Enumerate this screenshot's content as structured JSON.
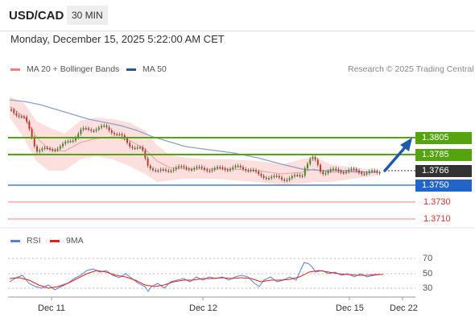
{
  "header": {
    "symbol": "USD/CAD",
    "interval": "30 MIN"
  },
  "datetime": "Monday, December 15, 2025 5:22:00 AM CET",
  "legend": {
    "bollinger_label": "MA 20 + Bollinger Bands",
    "bollinger_color": "#f08080",
    "ma50_label": "MA 50",
    "ma50_color": "#2a5599",
    "credit": "Research © 2025 Trading Central"
  },
  "levels": {
    "r2": {
      "value": "1.3805",
      "color": "#55a30e"
    },
    "r1": {
      "value": "1.3785",
      "color": "#55a30e"
    },
    "last": {
      "value": "1.3766",
      "color": "#333333"
    },
    "pivot": {
      "value": "1.3750",
      "color": "#2265c8"
    },
    "s1": {
      "value": "1.3730",
      "color": "#d0342c"
    },
    "s2": {
      "value": "1.3710",
      "color": "#d0342c"
    }
  },
  "rsi_legend": {
    "rsi_label": "RSI",
    "rsi_color": "#5b7fd6",
    "ma_label": "9MA",
    "ma_color": "#e02020"
  },
  "rsi_ticks": {
    "t70": "70",
    "t50": "50",
    "t30": "30"
  },
  "x_axis": [
    "Dec 11",
    "Dec 12",
    "Dec 15",
    "Dec 22"
  ]
}
